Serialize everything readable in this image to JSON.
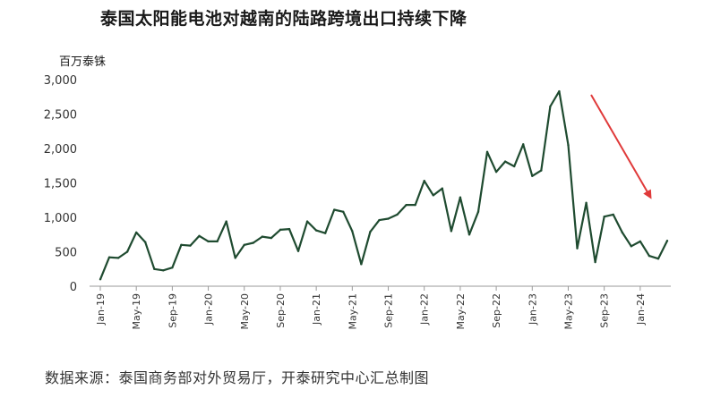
{
  "title": "泰国太阳能电池对越南的陆路跨境出口持续下降",
  "unit_label": "百万泰铢",
  "source": "数据来源：泰国商务部对外贸易厅，开泰研究中心汇总制图",
  "colors": {
    "line": "#1f4b30",
    "arrow": "#e03a3a",
    "axis": "#9a9a9a"
  },
  "chart_data": {
    "type": "line",
    "title": "泰国太阳能电池对越南的陆路跨境出口持续下降",
    "ylabel": "百万泰铢",
    "xlabel": "",
    "ylim": [
      0,
      3000
    ],
    "yticks": [
      0,
      500,
      1000,
      1500,
      2000,
      2500,
      3000
    ],
    "ytick_labels": [
      "0",
      "500",
      "1,000",
      "1,500",
      "2,000",
      "2,500",
      "3,000"
    ],
    "xtick_labels": [
      "Jan-19",
      "May-19",
      "Sep-19",
      "Jan-20",
      "May-20",
      "Sep-20",
      "Jan-21",
      "May-21",
      "Sep-21",
      "Jan-22",
      "May-22",
      "Sep-22",
      "Jan-23",
      "May-23",
      "Sep-23",
      "Jan-24"
    ],
    "xtick_every": 4,
    "grid": false,
    "annotation": "red downward arrow (decline trend)",
    "values": [
      100,
      420,
      410,
      500,
      780,
      640,
      250,
      230,
      270,
      600,
      590,
      730,
      650,
      650,
      940,
      410,
      600,
      630,
      720,
      700,
      820,
      830,
      510,
      940,
      810,
      770,
      1110,
      1080,
      800,
      320,
      790,
      960,
      980,
      1040,
      1180,
      1180,
      1530,
      1320,
      1420,
      800,
      1290,
      750,
      1080,
      1950,
      1660,
      1810,
      1740,
      2060,
      1600,
      1680,
      2610,
      2830,
      2050,
      550,
      1210,
      350,
      1010,
      1040,
      780,
      580,
      650,
      440,
      400,
      660
    ]
  }
}
